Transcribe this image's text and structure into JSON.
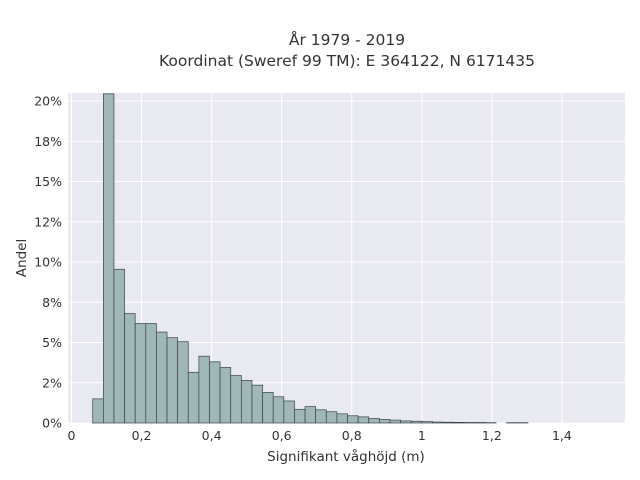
{
  "chart_data": {
    "type": "bar",
    "title_line1": "År 1979 - 2019",
    "title_line2": "Koordinat (Sweref 99 TM): E 364122, N 6171435",
    "xlabel": "Signifikant våghöjd (m)",
    "ylabel": "Andel",
    "xlim": [
      -0.01,
      1.58
    ],
    "ylim": [
      0,
      0.205
    ],
    "grid": true,
    "bin_width": 0.0303,
    "xticks": [
      {
        "value": 0,
        "label": "0"
      },
      {
        "value": 0.2,
        "label": "0,2"
      },
      {
        "value": 0.4,
        "label": "0,4"
      },
      {
        "value": 0.6,
        "label": "0,6"
      },
      {
        "value": 0.8,
        "label": "0,8"
      },
      {
        "value": 1.0,
        "label": "1"
      },
      {
        "value": 1.2,
        "label": "1,2"
      },
      {
        "value": 1.4,
        "label": "1,4"
      }
    ],
    "yticks": [
      {
        "value": 0,
        "label": "0%"
      },
      {
        "value": 0.025,
        "label": "2%"
      },
      {
        "value": 0.05,
        "label": "5%"
      },
      {
        "value": 0.075,
        "label": "8%"
      },
      {
        "value": 0.1,
        "label": "10%"
      },
      {
        "value": 0.125,
        "label": "12%"
      },
      {
        "value": 0.15,
        "label": "15%"
      },
      {
        "value": 0.175,
        "label": "18%"
      },
      {
        "value": 0.2,
        "label": "20%"
      }
    ],
    "bar_color": "#9fb7b6",
    "bar_edge": "#3a4444",
    "bins": [
      {
        "x": 0.0606,
        "value": 0.015
      },
      {
        "x": 0.0909,
        "value": 0.2045
      },
      {
        "x": 0.1212,
        "value": 0.0955
      },
      {
        "x": 0.1515,
        "value": 0.068
      },
      {
        "x": 0.1818,
        "value": 0.0618
      },
      {
        "x": 0.2121,
        "value": 0.0618
      },
      {
        "x": 0.2424,
        "value": 0.0565
      },
      {
        "x": 0.2727,
        "value": 0.053
      },
      {
        "x": 0.303,
        "value": 0.0505
      },
      {
        "x": 0.3333,
        "value": 0.0315
      },
      {
        "x": 0.3636,
        "value": 0.0415
      },
      {
        "x": 0.3939,
        "value": 0.038
      },
      {
        "x": 0.4242,
        "value": 0.0345
      },
      {
        "x": 0.4545,
        "value": 0.0295
      },
      {
        "x": 0.4848,
        "value": 0.0265
      },
      {
        "x": 0.5152,
        "value": 0.0235
      },
      {
        "x": 0.5455,
        "value": 0.019
      },
      {
        "x": 0.5758,
        "value": 0.0163
      },
      {
        "x": 0.6061,
        "value": 0.0137
      },
      {
        "x": 0.6364,
        "value": 0.0085
      },
      {
        "x": 0.6667,
        "value": 0.0102
      },
      {
        "x": 0.697,
        "value": 0.0082
      },
      {
        "x": 0.7273,
        "value": 0.007
      },
      {
        "x": 0.7576,
        "value": 0.0057
      },
      {
        "x": 0.7879,
        "value": 0.0045
      },
      {
        "x": 0.8182,
        "value": 0.0038
      },
      {
        "x": 0.8485,
        "value": 0.0028
      },
      {
        "x": 0.8788,
        "value": 0.0022
      },
      {
        "x": 0.9091,
        "value": 0.0018
      },
      {
        "x": 0.9394,
        "value": 0.0013
      },
      {
        "x": 0.9697,
        "value": 0.0011
      },
      {
        "x": 1.0,
        "value": 0.0009
      },
      {
        "x": 1.0303,
        "value": 0.0006
      },
      {
        "x": 1.0606,
        "value": 0.0005
      },
      {
        "x": 1.0909,
        "value": 0.0004
      },
      {
        "x": 1.1212,
        "value": 0.0003
      },
      {
        "x": 1.1515,
        "value": 0.0003
      },
      {
        "x": 1.1818,
        "value": 0.0002
      },
      {
        "x": 1.2424,
        "value": 0.0002
      },
      {
        "x": 1.2727,
        "value": 0.0002
      }
    ]
  }
}
